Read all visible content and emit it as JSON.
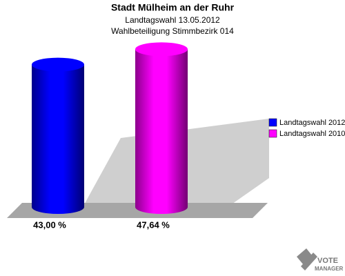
{
  "chart_data": {
    "type": "cylinder-bar",
    "title": "Stadt Mülheim an der Ruhr",
    "subtitle": [
      "Landtagswahl 13.05.2012",
      "Wahlbeteiligung Stimmbezirk 014"
    ],
    "series": [
      {
        "name": "Landtagswahl 2012",
        "color": "#0000ff",
        "values": [
          43.0
        ],
        "value_labels": [
          "43,00 %"
        ]
      },
      {
        "name": "Landtagswahl 2010",
        "color": "#ff00ff",
        "values": [
          47.64
        ],
        "value_labels": [
          "47,64 %"
        ]
      }
    ],
    "legend": "right",
    "watermark": [
      "VOTE",
      "MANAGER"
    ]
  }
}
